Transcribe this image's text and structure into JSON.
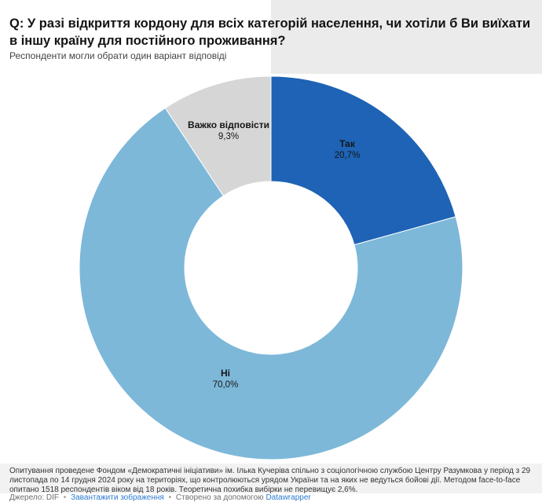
{
  "header": {
    "title": "Q: У разі відкриття кордону для всіх категорій населення, чи хотіли б Ви виїхати в іншу країну для постійного проживання?",
    "subtitle": "Респонденти могли обрати один варіант відповіді"
  },
  "chart_data": {
    "type": "pie",
    "donut": true,
    "title": "Q: У разі відкриття кордону для всіх категорій населення, чи хотіли б Ви виїхати в іншу країну для постійного проживання?",
    "units": "%",
    "start_angle_deg": 0,
    "direction": "clockwise",
    "slices": [
      {
        "label": "Так",
        "value": 20.7,
        "display": "20,7%",
        "color": "#1e63b5"
      },
      {
        "label": "Ні",
        "value": 70.0,
        "display": "70,0%",
        "color": "#7db8d9"
      },
      {
        "label": "Важко відповісти",
        "value": 9.3,
        "display": "9,3%",
        "color": "#d6d6d6"
      }
    ]
  },
  "footer": {
    "note": "Опитування проведене Фондом «Демократичні ініціативи» ім. Ілька Кучеріва спільно з соціологічною службою Центру Разумкова у період з 29 листопада по 14 грудня 2024 року на територіях, що контролюються урядом України та на яких не ведуться бойові дії. Методом face-to-face опитано 1518 респондентів віком від 18 років. Теоретична похибка вибірки не перевищує 2,6%.",
    "source_label": "Джерело: DIF",
    "separator": "•",
    "download_label": "Завантажити зображення",
    "created_with_label": "Створено за допомогою",
    "datawrapper_label": "Datawrapper"
  }
}
